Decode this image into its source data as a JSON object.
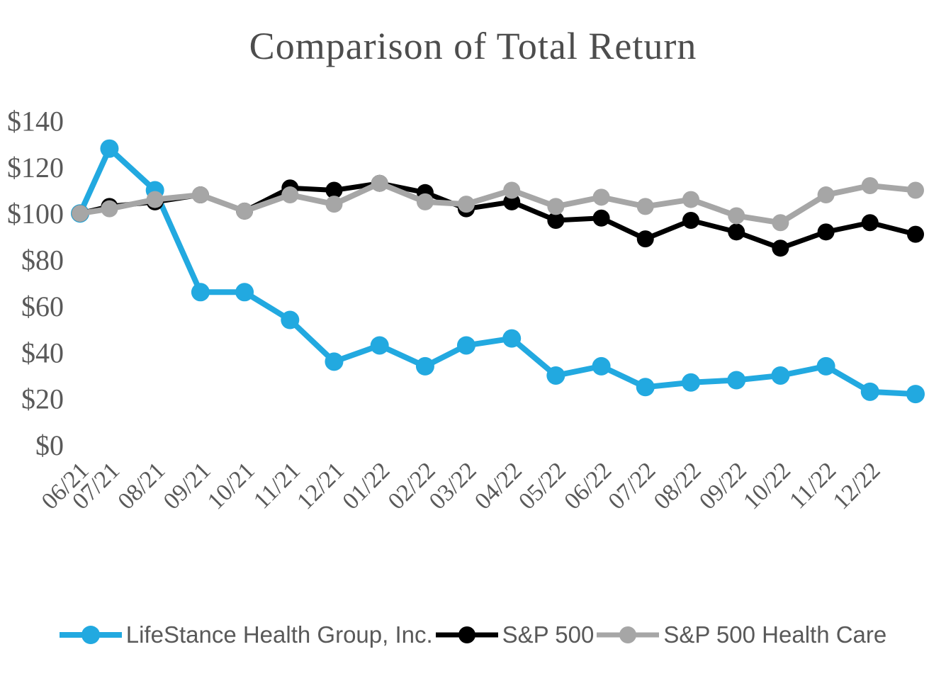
{
  "title": "Comparison of Total Return",
  "colors": {
    "lifestance_blue": "#22A9E0",
    "sp500_black": "#000000",
    "sp500_healthcare_gray": "#A6A6A6",
    "axis_text": "#595959",
    "title_text": "#4D4D4D",
    "background": "#FFFFFF"
  },
  "chart_data": {
    "type": "line",
    "title": "Comparison of Total Return",
    "grid": false,
    "legend_position": "bottom",
    "y_axis": {
      "range": [
        0,
        140
      ],
      "tick_step": 20,
      "ticks": [
        {
          "label": "$140",
          "value": 140
        },
        {
          "label": "$120",
          "value": 120
        },
        {
          "label": "$100",
          "value": 100
        },
        {
          "label": "$80",
          "value": 80
        },
        {
          "label": "$60",
          "value": 60
        },
        {
          "label": "$40",
          "value": 40
        },
        {
          "label": "$20",
          "value": 20
        },
        {
          "label": "$0",
          "value": 0
        }
      ]
    },
    "x_axis": {
      "ticks": [
        {
          "label": "06/21",
          "day": 0
        },
        {
          "label": "07/21",
          "day": 21
        },
        {
          "label": "08/21",
          "day": 52
        },
        {
          "label": "09/21",
          "day": 83
        },
        {
          "label": "10/21",
          "day": 113
        },
        {
          "label": "11/21",
          "day": 144
        },
        {
          "label": "12/21",
          "day": 174
        },
        {
          "label": "01/22",
          "day": 205
        },
        {
          "label": "02/22",
          "day": 236
        },
        {
          "label": "03/22",
          "day": 264
        },
        {
          "label": "04/22",
          "day": 295
        },
        {
          "label": "05/22",
          "day": 325
        },
        {
          "label": "06/22",
          "day": 356
        },
        {
          "label": "07/22",
          "day": 386
        },
        {
          "label": "08/22",
          "day": 417
        },
        {
          "label": "09/22",
          "day": 448
        },
        {
          "label": "10/22",
          "day": 478
        },
        {
          "label": "11/22",
          "day": 509
        },
        {
          "label": "12/22",
          "day": 539
        }
      ]
    },
    "point_day_offsets": [
      0,
      20,
      51,
      82,
      112,
      143,
      173,
      204,
      235,
      263,
      294,
      324,
      355,
      385,
      416,
      447,
      477,
      508,
      538,
      569
    ],
    "series": [
      {
        "name": "LifeStance Health Group, Inc.",
        "color": "#22A9E0",
        "values": [
          100,
          128,
          110,
          66,
          66,
          54,
          36,
          43,
          34,
          43,
          46,
          30,
          34,
          25,
          27,
          28,
          30,
          34,
          23,
          22
        ]
      },
      {
        "name": "S&P 500",
        "color": "#000000",
        "values": [
          100,
          103,
          105,
          108,
          101,
          111,
          110,
          113,
          109,
          102,
          105,
          97,
          98,
          89,
          97,
          92,
          85,
          92,
          96,
          91
        ]
      },
      {
        "name": "S&P 500 Health Care",
        "color": "#A6A6A6",
        "values": [
          100,
          102,
          106,
          108,
          101,
          108,
          104,
          113,
          105,
          104,
          110,
          103,
          107,
          103,
          106,
          99,
          96,
          108,
          112,
          110
        ]
      }
    ]
  },
  "legend": {
    "items": [
      {
        "label": "LifeStance Health Group, Inc."
      },
      {
        "label": "S&P 500"
      },
      {
        "label": "S&P 500 Health Care"
      }
    ]
  }
}
